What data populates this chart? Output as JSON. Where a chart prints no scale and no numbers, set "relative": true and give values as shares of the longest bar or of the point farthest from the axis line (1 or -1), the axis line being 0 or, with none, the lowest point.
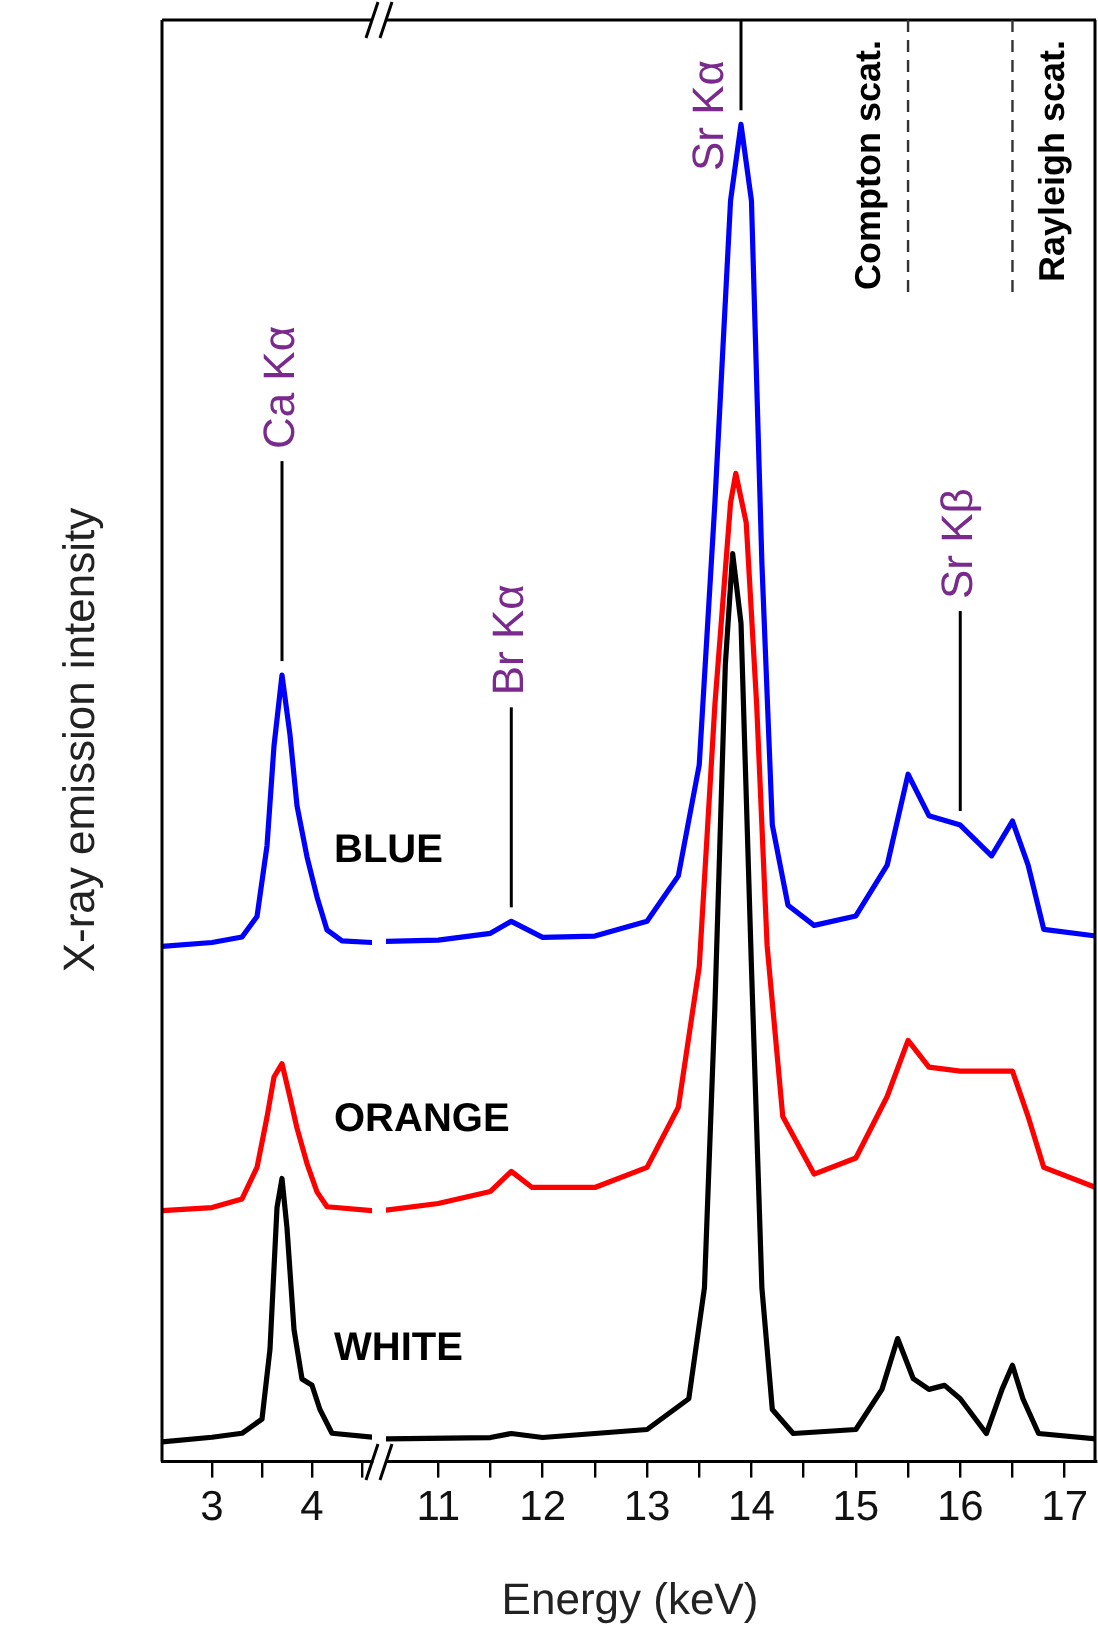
{
  "chart_data": [
    {
      "type": "line",
      "ylabel": "X-ray emission intensity",
      "relative": true,
      "xlim": [
        2.5,
        4.6
      ],
      "xticks": [
        3,
        {
          "value": 3.5,
          "label": null
        },
        4,
        {
          "value": 4.5,
          "label": null
        }
      ],
      "legend": false,
      "annotations": [
        {
          "text": "Ca Kα",
          "x": 3.7,
          "y": 1
        }
      ],
      "series": [
        {
          "color": "#0000ff",
          "x": [
            2.5,
            3.0,
            3.3,
            3.45,
            3.55,
            3.62,
            3.7,
            3.78,
            3.85,
            3.95,
            4.05,
            4.15,
            4.3,
            4.6
          ],
          "values": [
            0.655,
            0.66,
            0.667,
            0.693,
            0.783,
            0.91,
            1,
            0.924,
            0.834,
            0.769,
            0.718,
            0.676,
            0.662,
            0.66
          ]
        },
        {
          "color": "#ff0000",
          "x": [
            2.5,
            3.0,
            3.3,
            3.45,
            3.55,
            3.62,
            3.7,
            3.78,
            3.85,
            3.95,
            4.05,
            4.15,
            4.6
          ],
          "values": [
            0.319,
            0.323,
            0.334,
            0.374,
            0.438,
            0.489,
            0.506,
            0.463,
            0.424,
            0.379,
            0.343,
            0.324,
            0.319
          ]
        },
        {
          "color": "#000000",
          "x": [
            2.5,
            3.0,
            3.3,
            3.5,
            3.58,
            3.65,
            3.7,
            3.75,
            3.82,
            3.9,
            4.0,
            4.08,
            4.2,
            4.6
          ],
          "values": [
            0.025,
            0.031,
            0.036,
            0.054,
            0.143,
            0.323,
            0.36,
            0.297,
            0.168,
            0.105,
            0.097,
            0.066,
            0.036,
            0.031
          ]
        }
      ]
    },
    {
      "type": "line",
      "xlabel": "Energy (keV)",
      "relative": true,
      "xlim": [
        10.5,
        17.3
      ],
      "xticks": [
        11,
        {
          "value": 11.5,
          "label": null
        },
        12,
        {
          "value": 12.5,
          "label": null
        },
        13,
        {
          "value": 13.5,
          "label": null
        },
        14,
        {
          "value": 14.5,
          "label": null
        },
        15,
        {
          "value": 15.5,
          "label": null
        },
        16,
        {
          "value": 16.5,
          "label": null
        },
        17
      ],
      "legend": false,
      "annotations": [
        {
          "text": "Br Kα",
          "x": 11.7,
          "y": 0.404
        },
        {
          "text": "Sr Kα",
          "x": 13.9,
          "y": 1
        },
        {
          "text": "Sr Kβ",
          "x": 16.0,
          "y": 0.476
        }
      ],
      "ref_lines": [
        {
          "axis": "x",
          "value": 15.5,
          "label": "Compton scat.",
          "line_style": "dashed"
        },
        {
          "axis": "x",
          "value": 16.5,
          "label": "Rayleigh scat.",
          "line_style": "dashed"
        }
      ],
      "series": [
        {
          "name": "BLUE",
          "color": "#0000ff",
          "x": [
            10.5,
            11.0,
            11.5,
            11.7,
            11.85,
            12.0,
            12.5,
            13.0,
            13.3,
            13.5,
            13.65,
            13.8,
            13.9,
            14.0,
            14.1,
            14.2,
            14.35,
            14.6,
            15.0,
            15.3,
            15.5,
            15.7,
            16.0,
            16.3,
            16.5,
            16.65,
            16.8,
            17.3
          ],
          "values": [
            0.389,
            0.39,
            0.395,
            0.404,
            0.398,
            0.392,
            0.393,
            0.404,
            0.438,
            0.521,
            0.717,
            0.943,
            1,
            0.943,
            0.672,
            0.476,
            0.416,
            0.401,
            0.408,
            0.446,
            0.514,
            0.483,
            0.476,
            0.453,
            0.479,
            0.446,
            0.398,
            0.393
          ]
        },
        {
          "name": "ORANGE",
          "color": "#ff0000",
          "x": [
            10.5,
            11.0,
            11.5,
            11.7,
            11.9,
            12.5,
            13.0,
            13.3,
            13.5,
            13.65,
            13.8,
            13.85,
            13.95,
            14.05,
            14.15,
            14.3,
            14.6,
            15.0,
            15.3,
            15.5,
            15.7,
            16.0,
            16.5,
            16.65,
            16.8,
            17.3
          ],
          "values": [
            0.188,
            0.193,
            0.202,
            0.217,
            0.205,
            0.205,
            0.22,
            0.265,
            0.37,
            0.566,
            0.717,
            0.739,
            0.702,
            0.566,
            0.386,
            0.258,
            0.215,
            0.227,
            0.273,
            0.315,
            0.295,
            0.292,
            0.292,
            0.258,
            0.22,
            0.205
          ]
        },
        {
          "name": "WHITE",
          "color": "#000000",
          "x": [
            10.5,
            11.5,
            11.7,
            12.0,
            13.0,
            13.4,
            13.55,
            13.65,
            13.75,
            13.82,
            13.9,
            14.0,
            14.1,
            14.2,
            14.4,
            15.0,
            15.25,
            15.4,
            15.55,
            15.7,
            15.85,
            16.0,
            16.25,
            16.4,
            16.5,
            16.6,
            16.75,
            17.3
          ],
          "values": [
            0.017,
            0.018,
            0.021,
            0.018,
            0.024,
            0.047,
            0.13,
            0.34,
            0.596,
            0.679,
            0.627,
            0.37,
            0.13,
            0.039,
            0.021,
            0.024,
            0.054,
            0.092,
            0.062,
            0.054,
            0.057,
            0.047,
            0.021,
            0.054,
            0.072,
            0.047,
            0.021,
            0.017
          ]
        }
      ]
    }
  ]
}
